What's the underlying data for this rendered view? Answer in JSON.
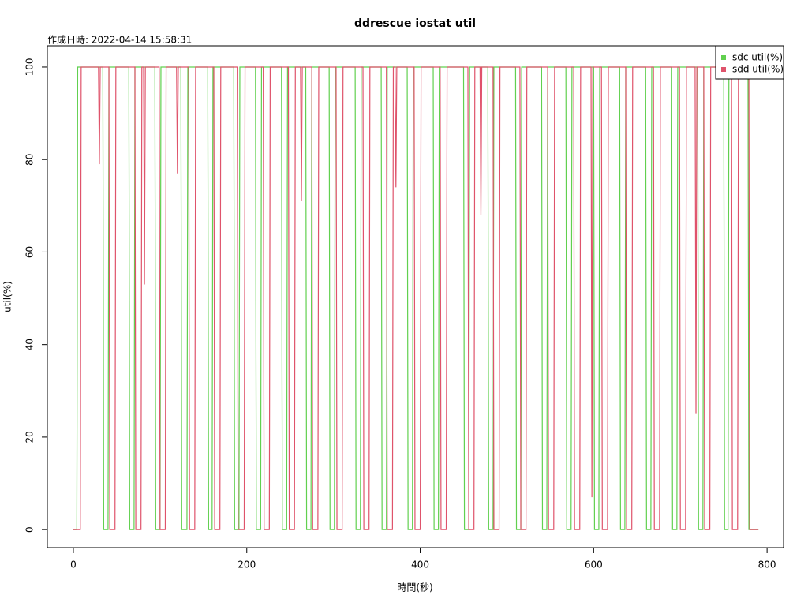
{
  "chart_data": {
    "type": "line",
    "title": "ddrescue iostat util",
    "subtitle": "作成日時: 2022-04-14 15:58:31",
    "x_label": "時間(秒)",
    "y_label": "util(%)",
    "xlim": [
      -30,
      819
    ],
    "ylim": [
      -3.9,
      104.6
    ],
    "xticks": [
      0,
      200,
      400,
      600,
      800
    ],
    "yticks": [
      0,
      20,
      40,
      60,
      80,
      100
    ],
    "legend": "top-right",
    "series": [
      {
        "name": "sdc util(%)",
        "color": "#61D04F",
        "x": [
          0,
          4,
          5,
          34,
          35,
          40,
          41,
          64,
          65,
          70,
          71,
          94,
          95,
          100,
          101,
          124,
          125,
          131,
          132,
          155,
          156,
          160,
          161,
          185,
          186,
          191,
          192,
          210,
          211,
          216,
          217,
          240,
          241,
          246,
          247,
          268,
          269,
          274,
          275,
          295,
          296,
          301,
          302,
          325,
          326,
          331,
          332,
          355,
          356,
          361,
          362,
          385,
          386,
          391,
          392,
          415,
          416,
          421,
          422,
          450,
          451,
          456,
          457,
          478,
          479,
          484,
          485,
          510,
          511,
          516,
          517,
          540,
          541,
          546,
          547,
          568,
          569,
          574,
          575,
          600,
          601,
          606,
          607,
          630,
          631,
          636,
          637,
          660,
          661,
          666,
          667,
          690,
          691,
          696,
          697,
          720,
          721,
          726,
          727,
          750,
          751,
          755,
          756,
          778,
          779,
          790
        ],
        "values": [
          0,
          0,
          100,
          100,
          0,
          0,
          100,
          100,
          0,
          0,
          100,
          100,
          0,
          0,
          100,
          100,
          0,
          0,
          100,
          100,
          0,
          0,
          100,
          100,
          0,
          0,
          100,
          100,
          0,
          0,
          100,
          100,
          0,
          0,
          100,
          100,
          0,
          0,
          100,
          100,
          0,
          0,
          100,
          100,
          0,
          0,
          100,
          100,
          0,
          0,
          100,
          100,
          0,
          0,
          100,
          100,
          0,
          0,
          100,
          100,
          0,
          0,
          100,
          100,
          0,
          0,
          100,
          100,
          0,
          0,
          100,
          100,
          0,
          0,
          100,
          100,
          0,
          0,
          100,
          100,
          0,
          0,
          100,
          100,
          0,
          0,
          100,
          100,
          0,
          0,
          100,
          100,
          0,
          0,
          100,
          100,
          0,
          0,
          100,
          100,
          0,
          0,
          100,
          100,
          0,
          0
        ]
      },
      {
        "name": "sdd util(%)",
        "color": "#DF536B",
        "x": [
          0,
          8,
          9,
          29,
          30,
          31,
          41,
          42,
          48,
          49,
          71,
          72,
          78,
          79,
          81,
          82,
          83,
          99,
          100,
          106,
          107,
          119,
          120,
          121,
          133,
          134,
          140,
          141,
          162,
          163,
          169,
          170,
          189,
          190,
          197,
          198,
          219,
          220,
          226,
          227,
          248,
          249,
          255,
          256,
          262,
          263,
          264,
          275,
          276,
          282,
          283,
          303,
          304,
          310,
          311,
          334,
          335,
          341,
          342,
          361,
          362,
          368,
          369,
          371,
          372,
          373,
          393,
          394,
          400,
          401,
          423,
          424,
          430,
          431,
          455,
          456,
          462,
          463,
          469,
          470,
          471,
          484,
          485,
          491,
          492,
          515,
          516,
          522,
          523,
          547,
          548,
          554,
          555,
          577,
          578,
          584,
          585,
          597,
          598,
          599,
          609,
          610,
          616,
          617,
          637,
          638,
          644,
          645,
          669,
          670,
          676,
          677,
          699,
          700,
          706,
          707,
          717,
          718,
          719,
          727,
          728,
          734,
          735,
          759,
          760,
          766,
          767,
          779,
          780,
          790
        ],
        "values": [
          0,
          0,
          100,
          100,
          79,
          100,
          100,
          0,
          0,
          100,
          100,
          0,
          0,
          100,
          100,
          53,
          100,
          100,
          0,
          0,
          100,
          100,
          77,
          100,
          100,
          0,
          0,
          100,
          100,
          0,
          0,
          100,
          100,
          0,
          0,
          100,
          100,
          0,
          0,
          100,
          100,
          0,
          0,
          100,
          100,
          71,
          100,
          100,
          0,
          0,
          100,
          100,
          0,
          0,
          100,
          100,
          0,
          0,
          100,
          100,
          0,
          0,
          100,
          100,
          74,
          100,
          100,
          0,
          0,
          100,
          100,
          0,
          0,
          100,
          100,
          0,
          0,
          100,
          100,
          68,
          100,
          100,
          0,
          0,
          100,
          100,
          0,
          0,
          100,
          100,
          0,
          0,
          100,
          100,
          0,
          0,
          100,
          100,
          7,
          100,
          100,
          0,
          0,
          100,
          100,
          0,
          0,
          100,
          100,
          0,
          0,
          100,
          100,
          0,
          0,
          100,
          100,
          25,
          100,
          100,
          0,
          0,
          100,
          100,
          0,
          0,
          100,
          100,
          0,
          0
        ]
      }
    ]
  }
}
